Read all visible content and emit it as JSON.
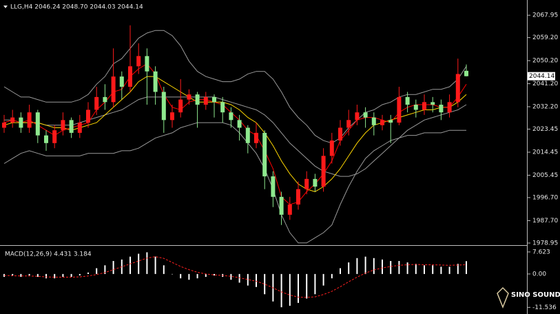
{
  "chart_data": [
    {
      "type": "candlestick",
      "title": "LLG,H4  2046.24 2048.70 2044.03 2044.14",
      "open": [
        2024,
        2026,
        2028,
        2024,
        2030,
        2021,
        2018,
        2023,
        2027,
        2022,
        2026,
        2031,
        2036,
        2034,
        2044,
        2040,
        2048,
        2052,
        2046,
        2038,
        2027,
        2030,
        2035,
        2037,
        2033,
        2036,
        2034,
        2030,
        2027,
        2024,
        2018,
        2022,
        2005,
        1997,
        1990,
        1994,
        2000,
        2004,
        2001,
        2013,
        2019,
        2024,
        2027,
        2030,
        2028,
        2025,
        2027,
        2026,
        2036,
        2033,
        2031,
        2034,
        2033,
        2030,
        2034,
        2046.24
      ],
      "high": [
        2029,
        2031,
        2030,
        2033,
        2031,
        2023,
        2025,
        2030,
        2028,
        2029,
        2034,
        2040,
        2041,
        2055,
        2046,
        2064,
        2057,
        2055,
        2048,
        2040,
        2033,
        2043,
        2039,
        2038,
        2038,
        2037,
        2036,
        2032,
        2029,
        2025,
        2026,
        2023,
        2007,
        1999,
        1997,
        2003,
        2007,
        2006,
        2016,
        2022,
        2027,
        2031,
        2033,
        2032,
        2030,
        2029,
        2029,
        2040,
        2038,
        2035,
        2037,
        2036,
        2035,
        2037,
        2051,
        2048.7
      ],
      "low": [
        2022,
        2024,
        2022,
        2022,
        2018,
        2015,
        2016,
        2021,
        2020,
        2020,
        2024,
        2029,
        2031,
        2032,
        2035,
        2038,
        2045,
        2033,
        2033,
        2022,
        2024,
        2028,
        2033,
        2024,
        2031,
        2028,
        2026,
        2024,
        2019,
        2014,
        2016,
        2000,
        1993,
        1986,
        1988,
        1992,
        1998,
        1999,
        1999,
        2010,
        2017,
        2021,
        2025,
        2024,
        2021,
        2023,
        2018,
        2025,
        2030,
        2028,
        2029,
        2030,
        2027,
        2028,
        2032,
        2044.03
      ],
      "close": [
        2026,
        2028,
        2024,
        2030,
        2021,
        2018,
        2023,
        2027,
        2022,
        2026,
        2031,
        2036,
        2034,
        2044,
        2040,
        2048,
        2052,
        2046,
        2038,
        2027,
        2030,
        2035,
        2037,
        2033,
        2036,
        2034,
        2030,
        2027,
        2024,
        2018,
        2022,
        2005,
        1997,
        1990,
        1994,
        2000,
        2004,
        2001,
        2013,
        2019,
        2024,
        2027,
        2030,
        2028,
        2025,
        2027,
        2026,
        2036,
        2033,
        2031,
        2034,
        2033,
        2030,
        2034,
        2045,
        2044.14
      ],
      "up_color": "#ff1a1a",
      "down_color": "#8ee88e",
      "series": [
        {
          "color": "#9a9a9a",
          "values": [
            2040,
            2038,
            2036,
            2036,
            2035,
            2034,
            2034,
            2034,
            2034,
            2035,
            2037,
            2041,
            2044,
            2049,
            2051,
            2055,
            2059,
            2061,
            2062,
            2062,
            2060,
            2056,
            2050,
            2046,
            2044,
            2043,
            2042,
            2042,
            2043,
            2045,
            2046,
            2046,
            2043,
            2038,
            2032,
            2028,
            2025,
            2021,
            2019,
            2018,
            2020,
            2024,
            2027,
            2030,
            2031,
            2033,
            2034,
            2036,
            2037,
            2037,
            2038,
            2039,
            2039,
            2040,
            2043,
            2048
          ]
        },
        {
          "color": "#9a9a9a",
          "values": [
            2027,
            2027,
            2026,
            2026,
            2026,
            2025,
            2025,
            2025,
            2025,
            2026,
            2027,
            2028,
            2029,
            2030,
            2031,
            2033,
            2035,
            2036,
            2036,
            2036,
            2036,
            2036,
            2036,
            2036,
            2036,
            2036,
            2035,
            2034,
            2033,
            2032,
            2031,
            2029,
            2026,
            2022,
            2018,
            2015,
            2012,
            2009,
            2007,
            2006,
            2005,
            2005,
            2006,
            2008,
            2011,
            2014,
            2017,
            2020,
            2023,
            2025,
            2027,
            2028,
            2029,
            2030,
            2031,
            2033
          ]
        },
        {
          "color": "#9a9a9a",
          "values": [
            2010,
            2012,
            2014,
            2015,
            2014,
            2013,
            2013,
            2013,
            2013,
            2013,
            2014,
            2014,
            2014,
            2014,
            2015,
            2015,
            2016,
            2018,
            2020,
            2021,
            2022,
            2024,
            2025,
            2026,
            2026,
            2026,
            2026,
            2025,
            2022,
            2018,
            2014,
            2008,
            2000,
            1990,
            1983,
            1979,
            1979,
            1981,
            1983,
            1986,
            1994,
            2001,
            2007,
            2012,
            2015,
            2017,
            2019,
            2020,
            2021,
            2021,
            2022,
            2022,
            2022,
            2023,
            2023,
            2023
          ]
        },
        {
          "color": "#ffd700",
          "values": [
            2025,
            2026,
            2026,
            2026,
            2026,
            2025,
            2024,
            2024,
            2023,
            2024,
            2025,
            2026,
            2029,
            2032,
            2035,
            2038,
            2042,
            2044,
            2044,
            2042,
            2040,
            2038,
            2036,
            2034,
            2034,
            2034,
            2034,
            2033,
            2031,
            2028,
            2026,
            2022,
            2017,
            2011,
            2006,
            2002,
            2000,
            1999,
            2001,
            2004,
            2008,
            2013,
            2018,
            2022,
            2025,
            2026,
            2027,
            2028,
            2029,
            2030,
            2031,
            2031,
            2032,
            2032,
            2034,
            2037
          ]
        },
        {
          "color": "#ff0000",
          "values": [
            2026,
            2027,
            2026,
            2027,
            2025,
            2023,
            2021,
            2023,
            2024,
            2025,
            2026,
            2031,
            2034,
            2038,
            2039,
            2044,
            2047,
            2049,
            2045,
            2037,
            2032,
            2031,
            2034,
            2035,
            2035,
            2034,
            2033,
            2030,
            2027,
            2023,
            2021,
            2015,
            2008,
            1997,
            1994,
            1995,
            1999,
            2002,
            2006,
            2011,
            2019,
            2023,
            2027,
            2028,
            2028,
            2027,
            2026,
            2030,
            2032,
            2033,
            2033,
            2033,
            2032,
            2032,
            2036,
            2041
          ]
        }
      ],
      "ylim": [
        1978.4,
        2073.9
      ],
      "yticks": [
        2067.95,
        {
          "value": 2059.2,
          "label": "2059.20"
        },
        {
          "value": 2050.2,
          "label": "2050.20"
        },
        {
          "value": 2041.2,
          "label": "2041.20"
        },
        {
          "value": 2032.2,
          "label": "2032.20"
        },
        2023.45,
        2014.45,
        2005.45,
        {
          "value": 1996.7,
          "label": "1996.70"
        },
        {
          "value": 1987.7,
          "label": "1987.70"
        },
        1978.95
      ],
      "last_price": 2044.14
    },
    {
      "type": "macd",
      "title": "MACD(12,26,9) 4.431 3.184",
      "values": [
        -1,
        -0.5,
        -1,
        -0.5,
        -1,
        -1.5,
        -1.5,
        -1,
        -1,
        -0.5,
        0.5,
        2,
        3,
        4.5,
        5,
        6,
        7,
        7.5,
        6,
        3,
        0,
        -1.5,
        -2,
        -1.5,
        -1,
        -0.5,
        -1,
        -2,
        -3,
        -4,
        -4.5,
        -7,
        -9.5,
        -11.5,
        -11,
        -10,
        -8.5,
        -7,
        -4,
        -1.5,
        2,
        4,
        5.5,
        6,
        5.5,
        5,
        4.5,
        4.5,
        4,
        3.5,
        3,
        3,
        2.5,
        2.5,
        3.5,
        4.431
      ],
      "color": "#ffffff",
      "series": [
        {
          "color": "#ff2020",
          "values": [
            -0.5,
            -0.6,
            -0.7,
            -0.7,
            -0.8,
            -1,
            -1.1,
            -1.1,
            -1.1,
            -1,
            -0.7,
            -0.2,
            0.5,
            1.5,
            2.5,
            3.5,
            4.5,
            5.5,
            6,
            5.4,
            4,
            2.6,
            1.5,
            0.6,
            0,
            -0.3,
            -0.5,
            -0.8,
            -1.3,
            -1.9,
            -2.5,
            -3.5,
            -4.8,
            -6.2,
            -7.3,
            -8,
            -8.1,
            -7.9,
            -7.1,
            -6,
            -4.4,
            -2.7,
            -1.1,
            0.3,
            1.4,
            2.1,
            2.6,
            3,
            3.2,
            3.3,
            3.2,
            3.2,
            3.1,
            3,
            3.1,
            3.184
          ]
        }
      ],
      "ylim": [
        -13.6,
        9.5
      ],
      "yticks": [
        7.623,
        {
          "value": 0,
          "label": "0.00"
        },
        -11.536
      ]
    }
  ],
  "watermark": "SINO SOUND"
}
